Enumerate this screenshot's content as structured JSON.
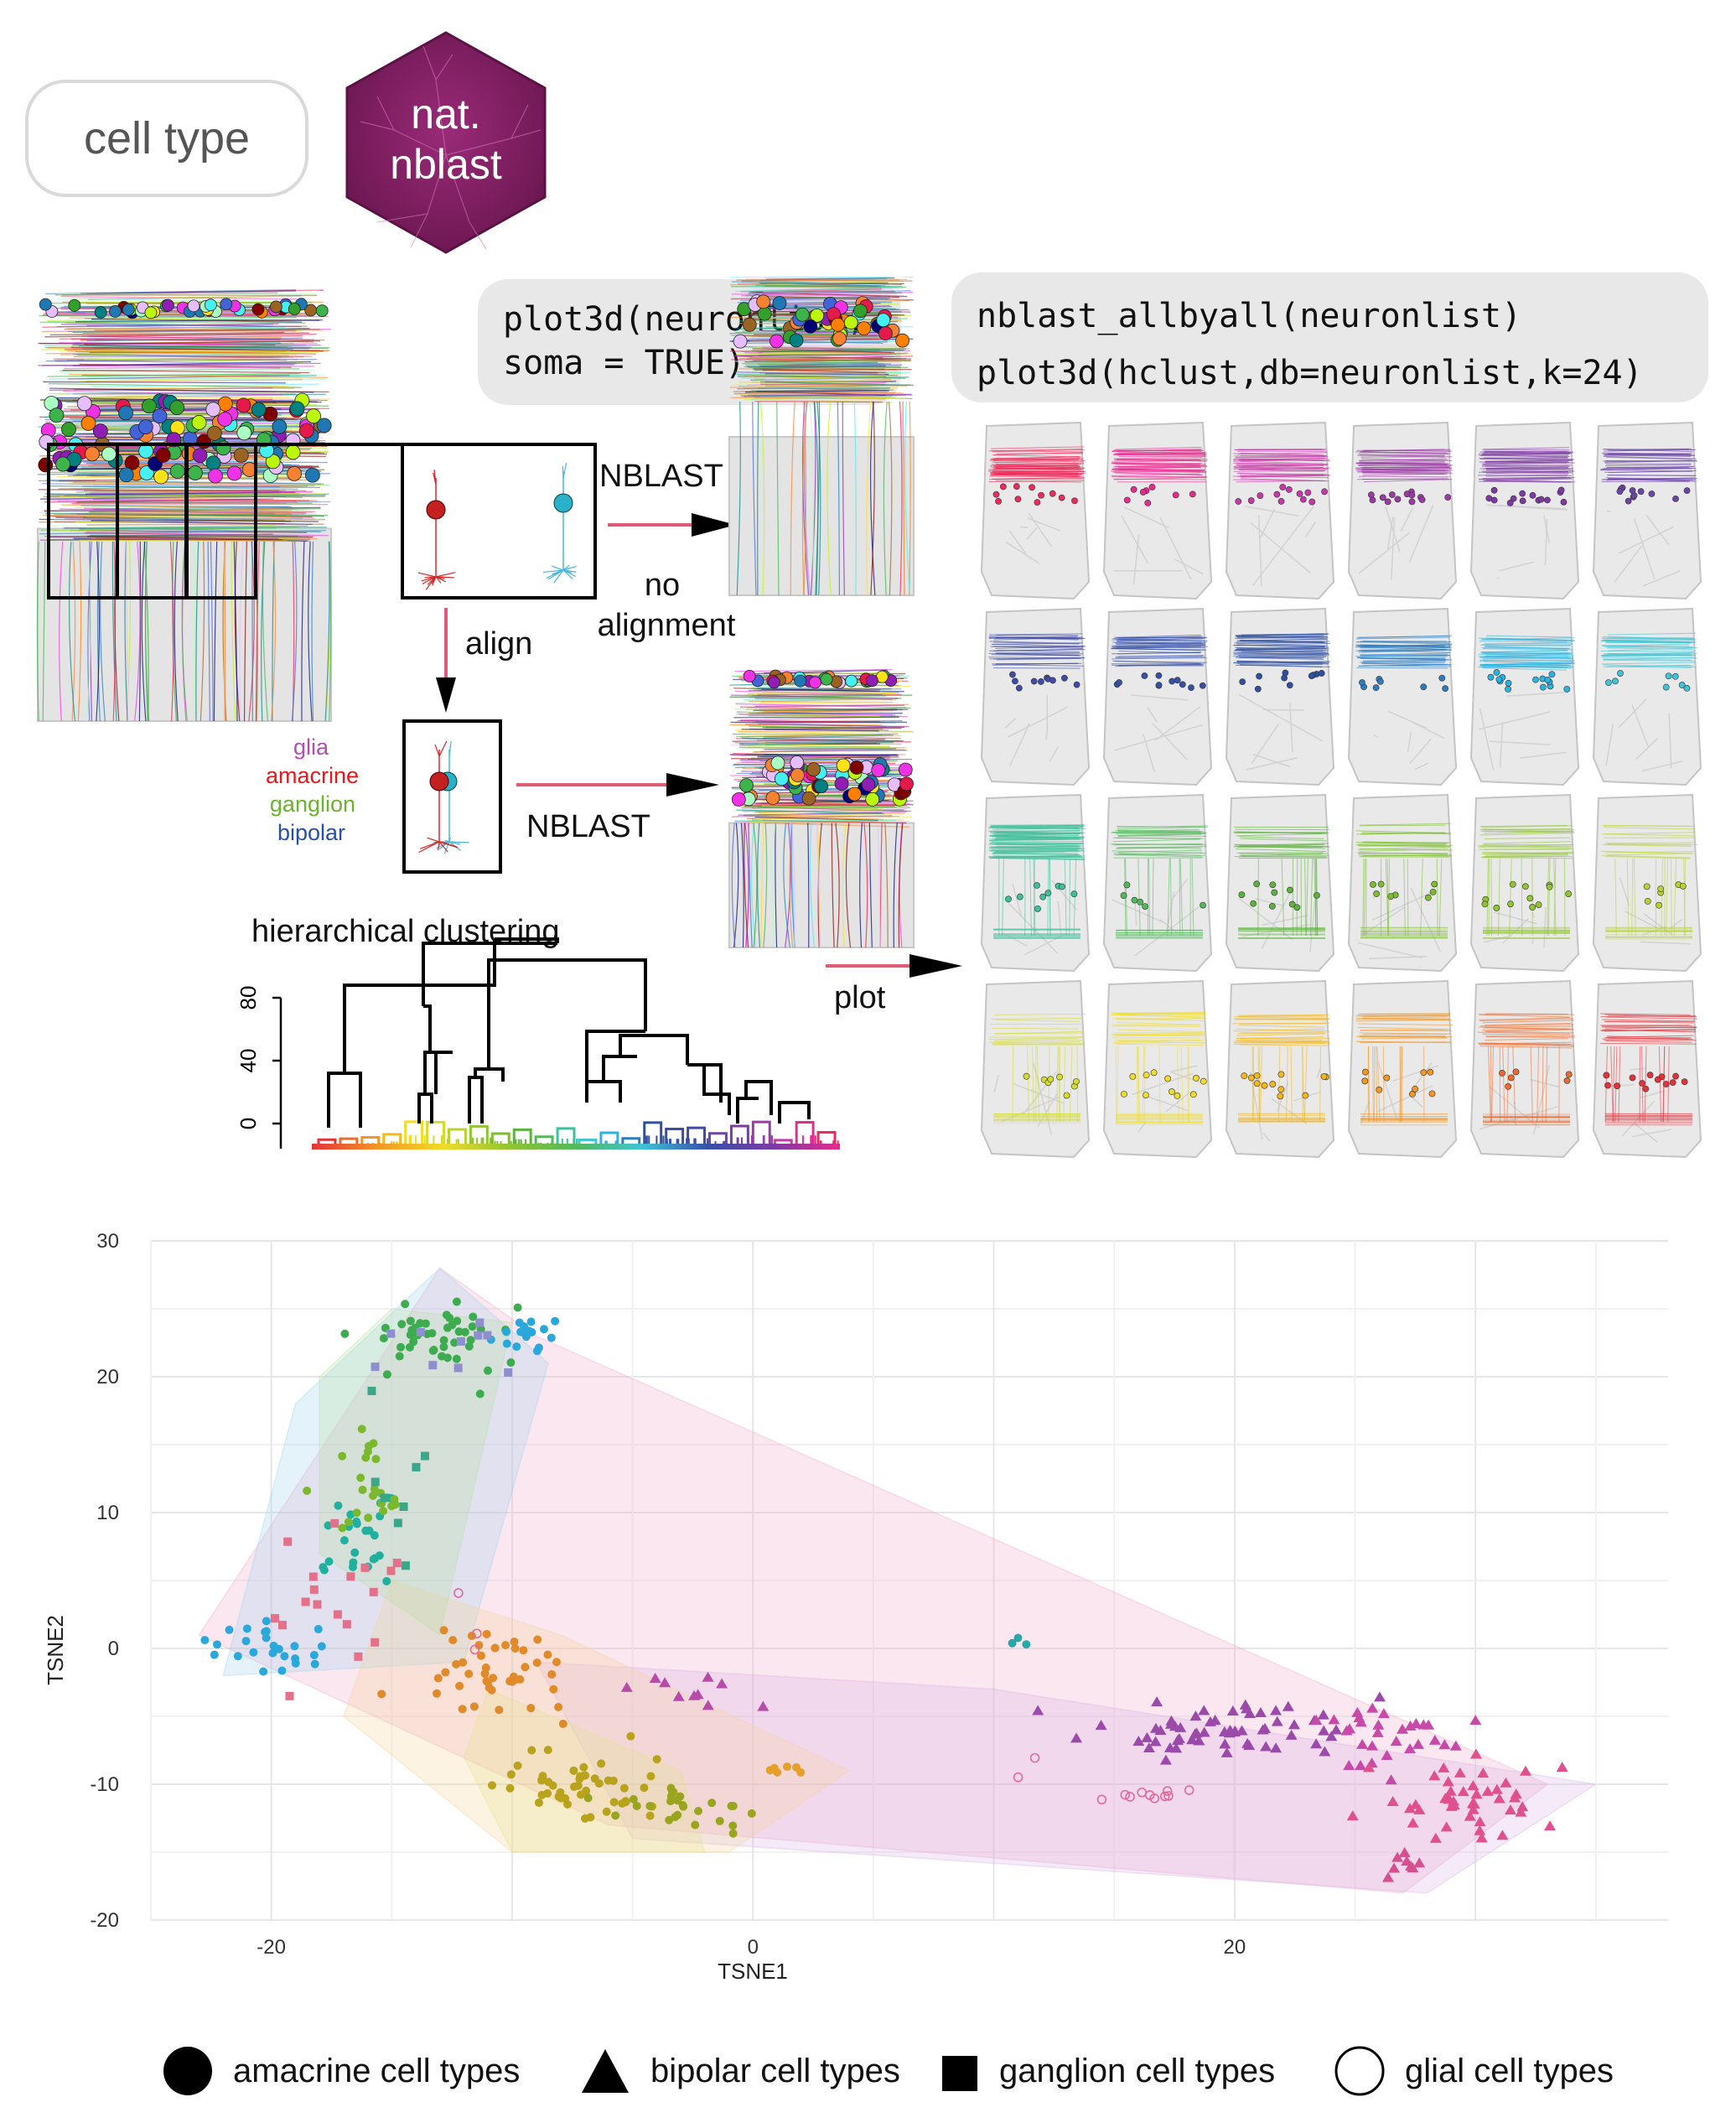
{
  "tag": {
    "label": "cell type"
  },
  "logo": {
    "line1": "nat.",
    "line2": "nblast",
    "color": "#7b1c5e"
  },
  "code": {
    "plot3d_line1": "plot3d(neuronlist,",
    "plot3d_line2": "soma = TRUE)",
    "nblast_line1": "nblast_allbyall(neuronlist)",
    "nblast_line2": "plot3d(hclust,db=neuronlist,k=24)"
  },
  "flow": {
    "nblast_top": "NBLAST",
    "no_alignment_1": "no",
    "no_alignment_2": "alignment",
    "align": "align",
    "nblast_bottom": "NBLAST",
    "plot": "plot"
  },
  "cell_classes": [
    {
      "name": "glia",
      "color": "#b04fb0"
    },
    {
      "name": "amacrine",
      "color": "#e31a1c"
    },
    {
      "name": "ganglion",
      "color": "#6ab42d"
    },
    {
      "name": "bipolar",
      "color": "#2851a3"
    }
  ],
  "dendrogram": {
    "title": "hierarchical clustering",
    "y_ticks": [
      "0",
      "40",
      "80"
    ]
  },
  "cluster_colors": [
    "#ee2a5a",
    "#e62a8e",
    "#c837a8",
    "#9b3aa5",
    "#7c3aa2",
    "#6a44a8",
    "#3f4ba8",
    "#3650a8",
    "#2f4fa2",
    "#2d7cc0",
    "#29b3e0",
    "#3fc5d6",
    "#3fbf9a",
    "#52b85a",
    "#5cb23c",
    "#7cbd2f",
    "#90c431",
    "#b7d332",
    "#d4dc2c",
    "#f0dc29",
    "#f5b719",
    "#f39623",
    "#ee6a2a",
    "#e4323a"
  ],
  "chart_data": {
    "type": "scatter",
    "xlabel": "TSNE1",
    "ylabel": "TSNE2",
    "xlim": [
      -25,
      38
    ],
    "ylim": [
      -20,
      30
    ],
    "x_ticks": [
      -20,
      0,
      20
    ],
    "y_ticks": [
      -20,
      -10,
      0,
      10,
      20,
      30
    ],
    "grid": true,
    "legend": [
      {
        "shape": "circle",
        "label": "amacrine cell types"
      },
      {
        "shape": "triangle",
        "label": "bipolar cell types"
      },
      {
        "shape": "square",
        "label": "ganglion cell types"
      },
      {
        "shape": "open-circle",
        "label": "glial cell types"
      }
    ],
    "groups": [
      {
        "shape": "circle",
        "color": "#3cac4f",
        "cx": -13.5,
        "cy": 23,
        "sx": 2.8,
        "sy": 2.5,
        "n": 45
      },
      {
        "shape": "circle",
        "color": "#2aa8dc",
        "cx": -9.5,
        "cy": 23,
        "sx": 1.2,
        "sy": 1.5,
        "n": 18
      },
      {
        "shape": "circle",
        "color": "#2aa8dc",
        "cx": -20,
        "cy": 0,
        "sx": 1.8,
        "sy": 1.8,
        "n": 25
      },
      {
        "shape": "circle",
        "color": "#20b0a0",
        "cx": -16.5,
        "cy": 8,
        "sx": 1.8,
        "sy": 3,
        "n": 25
      },
      {
        "shape": "circle",
        "color": "#7cb82e",
        "cx": -16,
        "cy": 12,
        "sx": 1.8,
        "sy": 4,
        "n": 22
      },
      {
        "shape": "circle",
        "color": "#e08a2a",
        "cx": -10.5,
        "cy": -2,
        "sx": 3,
        "sy": 2.5,
        "n": 45
      },
      {
        "shape": "circle",
        "color": "#b9a21c",
        "cx": -7,
        "cy": -10,
        "sx": 2.6,
        "sy": 2.2,
        "n": 50
      },
      {
        "shape": "circle",
        "color": "#9aa51f",
        "cx": -3.5,
        "cy": -12,
        "sx": 2.4,
        "sy": 1.6,
        "n": 25
      },
      {
        "shape": "circle",
        "color": "#e6a02a",
        "cx": 1.5,
        "cy": -8.8,
        "sx": 1,
        "sy": 0.4,
        "n": 6
      },
      {
        "shape": "circle",
        "color": "#2aa8a8",
        "cx": 11,
        "cy": 0.5,
        "sx": 0.3,
        "sy": 0.3,
        "n": 3
      },
      {
        "shape": "square",
        "color": "#e4708a",
        "cx": -17,
        "cy": 6,
        "sx": 2.5,
        "sy": 5,
        "n": 18
      },
      {
        "shape": "square",
        "color": "#8f8fd0",
        "cx": -13,
        "cy": 22,
        "sx": 2.5,
        "sy": 3,
        "n": 10
      },
      {
        "shape": "square",
        "color": "#3aa888",
        "cx": -14,
        "cy": 11,
        "sx": 1.5,
        "sy": 4,
        "n": 8
      },
      {
        "shape": "triangle",
        "color": "#9a4aa8",
        "cx": 19,
        "cy": -6,
        "sx": 5,
        "sy": 1.6,
        "n": 60
      },
      {
        "shape": "triangle",
        "color": "#c84aa8",
        "cx": 26,
        "cy": -7,
        "sx": 3,
        "sy": 2,
        "n": 30
      },
      {
        "shape": "triangle",
        "color": "#e0508e",
        "cx": 30,
        "cy": -11,
        "sx": 2.8,
        "sy": 2.2,
        "n": 45
      },
      {
        "shape": "triangle",
        "color": "#d4508e",
        "cx": 27,
        "cy": -16,
        "sx": 0.8,
        "sy": 1,
        "n": 8
      },
      {
        "shape": "triangle",
        "color": "#b84aa8",
        "cx": -2,
        "cy": -3,
        "sx": 2,
        "sy": 1.5,
        "n": 10
      },
      {
        "shape": "open-circle",
        "color": "#e06a9a",
        "cx": 16.5,
        "cy": -10.8,
        "sx": 1.5,
        "sy": 0.3,
        "n": 10
      },
      {
        "shape": "open-circle",
        "color": "#e06a9a",
        "cx": 11.5,
        "cy": -8.5,
        "sx": 0.5,
        "sy": 0.6,
        "n": 2
      },
      {
        "shape": "open-circle",
        "color": "#e06a9a",
        "cx": -11.5,
        "cy": 1.5,
        "sx": 1.5,
        "sy": 1.5,
        "n": 3
      }
    ],
    "hulls": [
      {
        "color": "#f2a8c8",
        "points": [
          [
            -13,
            28
          ],
          [
            -9,
            23
          ],
          [
            33,
            -10
          ],
          [
            27,
            -18
          ],
          [
            -6,
            -13
          ],
          [
            -23,
            1
          ]
        ]
      },
      {
        "color": "#d9b3e6",
        "points": [
          [
            -9,
            -1
          ],
          [
            10,
            -3
          ],
          [
            35,
            -10
          ],
          [
            28,
            -18
          ],
          [
            -5,
            -14
          ]
        ]
      },
      {
        "color": "#9fd4ee",
        "points": [
          [
            -13,
            28
          ],
          [
            -8.5,
            21
          ],
          [
            -12,
            -1
          ],
          [
            -22,
            -2
          ],
          [
            -19,
            18
          ]
        ]
      },
      {
        "color": "#f3d39a",
        "points": [
          [
            -15,
            5
          ],
          [
            -8,
            1
          ],
          [
            4,
            -9
          ],
          [
            -1,
            -15
          ],
          [
            -10,
            -15
          ],
          [
            -17,
            -5
          ]
        ]
      },
      {
        "color": "#b8e0a2",
        "points": [
          [
            -15,
            25
          ],
          [
            -10,
            24
          ],
          [
            -13,
            1
          ],
          [
            -18,
            7
          ],
          [
            -18,
            20
          ]
        ]
      },
      {
        "color": "#e6e28a",
        "points": [
          [
            -11,
            -3
          ],
          [
            -3,
            -9
          ],
          [
            -2,
            -15
          ],
          [
            -10,
            -15
          ],
          [
            -12,
            -8
          ]
        ]
      }
    ]
  }
}
